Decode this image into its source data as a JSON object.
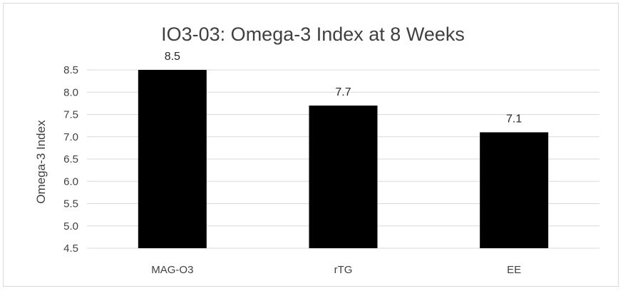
{
  "chart_data": {
    "type": "bar",
    "title": "IO3-03: Omega-3 Index at 8 Weeks",
    "xlabel": "",
    "ylabel": "Omega-3 Index",
    "categories": [
      "MAG-O3",
      "rTG",
      "EE"
    ],
    "values": [
      8.5,
      7.7,
      7.1
    ],
    "data_labels": [
      "8.5",
      "7.7",
      "7.1"
    ],
    "ylim": [
      4.5,
      8.5
    ],
    "yticks": [
      "4.5",
      "5.0",
      "5.5",
      "6.0",
      "6.5",
      "7.0",
      "7.5",
      "8.0",
      "8.5"
    ],
    "grid": true,
    "legend": "none",
    "bar_color": "#000000",
    "grid_color": "#d9d9d9"
  }
}
